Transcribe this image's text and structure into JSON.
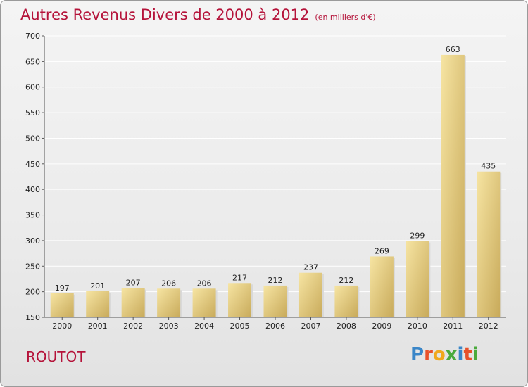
{
  "header": {
    "title": "Autres Revenus Divers de 2000 à 2012",
    "unit": "(en milliers d'€)"
  },
  "footer": {
    "commune": "ROUTOT",
    "logo": "Proxiti",
    "logo_colors": [
      "#3a86c8",
      "#e8512a",
      "#f0a81c",
      "#4aaa3c",
      "#3a86c8",
      "#e8512a",
      "#4aaa3c"
    ]
  },
  "colors": {
    "title": "#b5133a",
    "bar_light": "#f4df98",
    "bar_dark": "#c8aa5a"
  },
  "chart_data": {
    "type": "bar",
    "title": "Autres Revenus Divers de 2000 à 2012",
    "categories": [
      "2000",
      "2001",
      "2002",
      "2003",
      "2004",
      "2005",
      "2006",
      "2007",
      "2008",
      "2009",
      "2010",
      "2011",
      "2012"
    ],
    "values": [
      197,
      201,
      207,
      206,
      206,
      217,
      212,
      237,
      212,
      269,
      299,
      663,
      435
    ],
    "ylim": [
      150,
      700
    ],
    "yticks": [
      150,
      200,
      250,
      300,
      350,
      400,
      450,
      500,
      550,
      600,
      650,
      700
    ],
    "xlabel": "",
    "ylabel": "",
    "grid": "horizontal"
  }
}
